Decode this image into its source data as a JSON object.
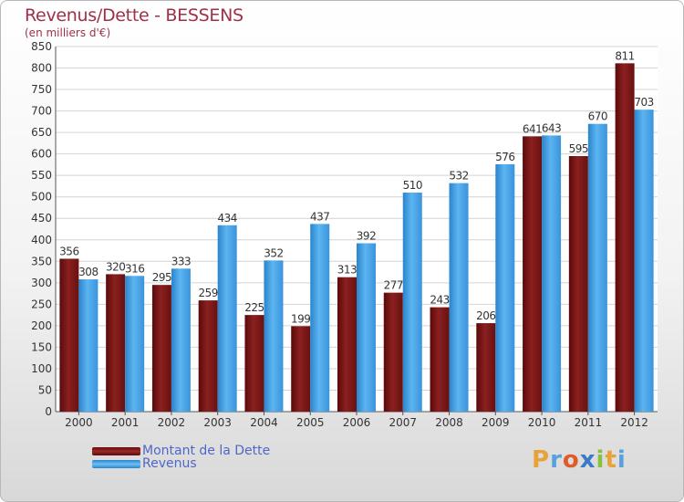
{
  "chart_data": {
    "type": "bar",
    "title": "Revenus/Dette - BESSENS",
    "subtitle": "(en milliers d'€)",
    "categories": [
      "2000",
      "2001",
      "2002",
      "2003",
      "2004",
      "2005",
      "2006",
      "2007",
      "2008",
      "2009",
      "2010",
      "2011",
      "2012"
    ],
    "series": [
      {
        "name": "Montant de la Dette",
        "color": "#8b1a1a",
        "values": [
          356,
          320,
          295,
          259,
          225,
          199,
          313,
          277,
          243,
          206,
          641,
          595,
          811
        ]
      },
      {
        "name": "Revenus",
        "color": "#4aa3e8",
        "values": [
          308,
          316,
          333,
          434,
          352,
          437,
          392,
          510,
          532,
          576,
          643,
          670,
          703
        ]
      }
    ],
    "ylim": [
      0,
      850
    ],
    "yticks": [
      0,
      50,
      100,
      150,
      200,
      250,
      300,
      350,
      400,
      450,
      500,
      550,
      600,
      650,
      700,
      750,
      800,
      850
    ],
    "grid": true,
    "legend_position": "bottom-left"
  },
  "logo": {
    "letters": [
      {
        "ch": "P",
        "color": "#e8a23a"
      },
      {
        "ch": "r",
        "color": "#5aa0e0"
      },
      {
        "ch": "o",
        "color": "#e05a2a"
      },
      {
        "ch": "x",
        "color": "#3a7ac8"
      },
      {
        "ch": "i",
        "color": "#8ac040"
      },
      {
        "ch": "t",
        "color": "#e8a23a"
      },
      {
        "ch": "i",
        "color": "#5aa0e0"
      }
    ]
  }
}
